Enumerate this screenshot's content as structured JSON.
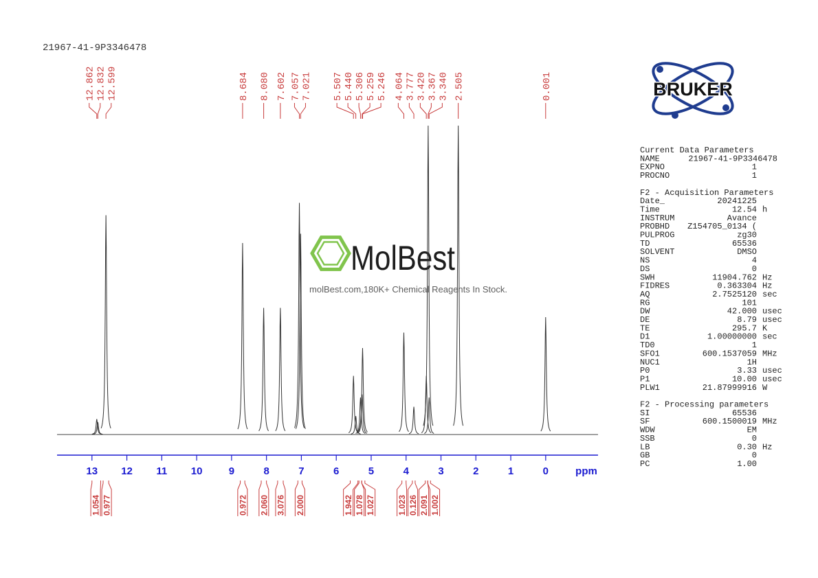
{
  "sample_id": "21967-41-9P3346478",
  "spectrum": {
    "xlim": [
      14.0,
      -1.5
    ],
    "xticks": [
      13,
      12,
      11,
      10,
      9,
      8,
      7,
      6,
      5,
      4,
      3,
      2,
      1,
      0
    ],
    "x_unit": "ppm",
    "signals": [
      {
        "ppm": 12.862,
        "height": 5
      },
      {
        "ppm": 12.832,
        "height": 4
      },
      {
        "ppm": 12.599,
        "height": 71
      },
      {
        "ppm": 8.684,
        "height": 62
      },
      {
        "ppm": 8.08,
        "height": 41
      },
      {
        "ppm": 7.602,
        "height": 41
      },
      {
        "ppm": 7.057,
        "height": 75
      },
      {
        "ppm": 7.021,
        "height": 65
      },
      {
        "ppm": 5.507,
        "height": 19
      },
      {
        "ppm": 5.44,
        "height": 6
      },
      {
        "ppm": 5.306,
        "height": 12
      },
      {
        "ppm": 5.259,
        "height": 13
      },
      {
        "ppm": 5.246,
        "height": 28
      },
      {
        "ppm": 4.064,
        "height": 33
      },
      {
        "ppm": 3.777,
        "height": 9
      },
      {
        "ppm": 3.42,
        "height": 19
      },
      {
        "ppm": 3.367,
        "height": 100
      },
      {
        "ppm": 3.34,
        "height": 12
      },
      {
        "ppm": 2.505,
        "height": 100
      },
      {
        "ppm": 0.001,
        "height": 38
      }
    ],
    "peak_labels": [
      {
        "value": 12.862,
        "label": "12.862"
      },
      {
        "value": 12.832,
        "label": "12.832"
      },
      {
        "value": 12.599,
        "label": "12.599"
      },
      {
        "value": 8.684,
        "label": "8.684"
      },
      {
        "value": 8.08,
        "label": "8.080"
      },
      {
        "value": 7.602,
        "label": "7.602"
      },
      {
        "value": 7.057,
        "label": "7.057"
      },
      {
        "value": 7.021,
        "label": "7.021"
      },
      {
        "value": 5.507,
        "label": "5.507"
      },
      {
        "value": 5.44,
        "label": "5.440"
      },
      {
        "value": 5.306,
        "label": "5.306"
      },
      {
        "value": 5.259,
        "label": "5.259"
      },
      {
        "value": 5.246,
        "label": "5.246"
      },
      {
        "value": 4.064,
        "label": "4.064"
      },
      {
        "value": 3.777,
        "label": "3.777"
      },
      {
        "value": 3.42,
        "label": "3.420"
      },
      {
        "value": 3.367,
        "label": "3.367"
      },
      {
        "value": 3.34,
        "label": "3.340"
      },
      {
        "value": 2.505,
        "label": "2.505"
      },
      {
        "value": 0.001,
        "label": "0.001"
      }
    ],
    "integrals": [
      {
        "value": 1.054,
        "label": "1.054",
        "range": [
          13.0,
          12.75
        ]
      },
      {
        "value": 0.977,
        "label": "0.977",
        "range": [
          12.68,
          12.52
        ]
      },
      {
        "value": 0.972,
        "label": "0.972",
        "range": [
          8.75,
          8.62
        ]
      },
      {
        "value": 2.06,
        "label": "2.060",
        "range": [
          8.15,
          8.0
        ]
      },
      {
        "value": 3.076,
        "label": "3.076",
        "range": [
          7.68,
          7.52
        ]
      },
      {
        "value": 2.0,
        "label": "2.000",
        "range": [
          7.1,
          6.98
        ]
      },
      {
        "value": 1.942,
        "label": "1.942",
        "range": [
          5.6,
          5.38
        ]
      },
      {
        "value": 1.078,
        "label": "1.078",
        "range": [
          5.35,
          5.27
        ]
      },
      {
        "value": 1.027,
        "label": "1.027",
        "range": [
          5.27,
          5.18
        ]
      },
      {
        "value": 1.023,
        "label": "1.023",
        "range": [
          4.12,
          4.0
        ]
      },
      {
        "value": 0.126,
        "label": "0.126",
        "range": [
          3.82,
          3.74
        ]
      },
      {
        "value": 2.091,
        "label": "2.091",
        "range": [
          3.45,
          3.38
        ]
      },
      {
        "value": 1.002,
        "label": "1.002",
        "range": [
          3.38,
          3.3
        ]
      }
    ]
  },
  "logo": {
    "brand": "BRUKER"
  },
  "watermark": {
    "name": "MolBest",
    "tagline": "molBest.com,180K+ Chemical Reagents In Stock."
  },
  "parameters": [
    {
      "title": "Current Data Parameters",
      "rows": [
        {
          "name": "NAME",
          "value": "21967-41-9P3346478"
        },
        {
          "name": "EXPNO",
          "value": "1"
        },
        {
          "name": "PROCNO",
          "value": "1"
        }
      ]
    },
    {
      "title": "F2 - Acquisition Parameters",
      "rows": [
        {
          "name": "Date_",
          "value": "20241225"
        },
        {
          "name": "Time",
          "value": "12.54",
          "unit": "h"
        },
        {
          "name": "INSTRUM",
          "value": "Avance"
        },
        {
          "name": "PROBHD",
          "value": "Z154705_0134 ("
        },
        {
          "name": "PULPROG",
          "value": "zg30"
        },
        {
          "name": "TD",
          "value": "65536"
        },
        {
          "name": "SOLVENT",
          "value": "DMSO"
        },
        {
          "name": "NS",
          "value": "4"
        },
        {
          "name": "DS",
          "value": "0"
        },
        {
          "name": "SWH",
          "value": "11904.762",
          "unit": "Hz"
        },
        {
          "name": "FIDRES",
          "value": "0.363304",
          "unit": "Hz"
        },
        {
          "name": "AQ",
          "value": "2.7525120",
          "unit": "sec"
        },
        {
          "name": "RG",
          "value": "101"
        },
        {
          "name": "DW",
          "value": "42.000",
          "unit": "usec"
        },
        {
          "name": "DE",
          "value": "8.79",
          "unit": "usec"
        },
        {
          "name": "TE",
          "value": "295.7",
          "unit": "K"
        },
        {
          "name": "D1",
          "value": "1.00000000",
          "unit": "sec"
        },
        {
          "name": "TD0",
          "value": "1"
        },
        {
          "name": "SFO1",
          "value": "600.1537059",
          "unit": "MHz"
        },
        {
          "name": "NUC1",
          "value": "1H"
        },
        {
          "name": "P0",
          "value": "3.33",
          "unit": "usec"
        },
        {
          "name": "P1",
          "value": "10.00",
          "unit": "usec"
        },
        {
          "name": "PLW1",
          "value": "21.87999916",
          "unit": "W"
        }
      ]
    },
    {
      "title": "F2 - Processing parameters",
      "rows": [
        {
          "name": "SI",
          "value": "65536"
        },
        {
          "name": "SF",
          "value": "600.1500019",
          "unit": "MHz"
        },
        {
          "name": "WDW",
          "value": "EM"
        },
        {
          "name": "SSB",
          "value": "0"
        },
        {
          "name": "LB",
          "value": "0.30",
          "unit": "Hz"
        },
        {
          "name": "GB",
          "value": "0"
        },
        {
          "name": "PC",
          "value": "1.00"
        }
      ]
    }
  ]
}
